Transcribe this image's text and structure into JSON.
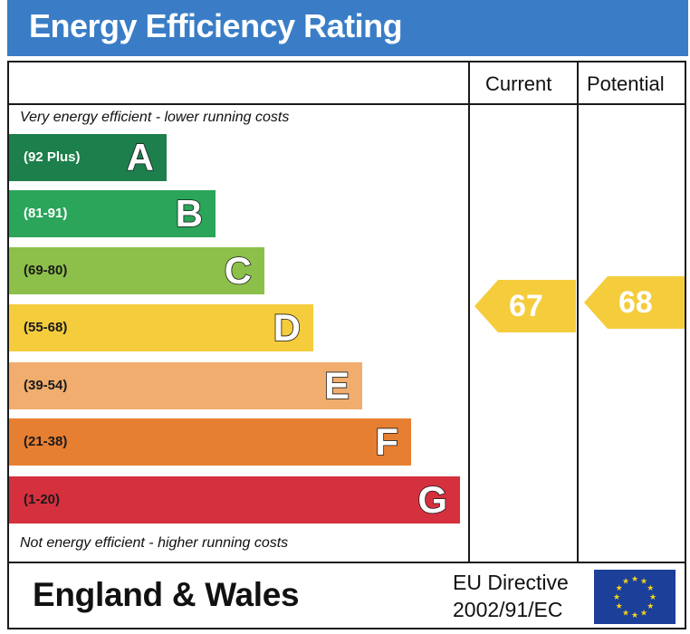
{
  "title": "Energy Efficiency Rating",
  "columns": {
    "current": "Current",
    "potential": "Potential"
  },
  "notes": {
    "top": "Very energy efficient - lower running costs",
    "bottom": "Not energy efficient - higher running costs"
  },
  "footer": {
    "region": "England & Wales",
    "directive_line1": "EU Directive",
    "directive_line2": "2002/91/EC"
  },
  "chart_data": {
    "type": "bar",
    "categories": [
      "A",
      "B",
      "C",
      "D",
      "E",
      "F",
      "G"
    ],
    "ranges": [
      "(92 Plus)",
      "(81-91)",
      "(69-80)",
      "(55-68)",
      "(39-54)",
      "(21-38)",
      "(1-20)"
    ],
    "colors": [
      "#1d7f4b",
      "#2aa55a",
      "#8cc04a",
      "#f5cc3c",
      "#f0ad6e",
      "#e77f32",
      "#d5303e"
    ],
    "current": {
      "value": 67,
      "band": "D",
      "color": "#f5cc3c"
    },
    "potential": {
      "value": 68,
      "band": "D",
      "color": "#f5cc3c"
    }
  },
  "icons": {
    "eu_flag": "eu-flag-icon"
  }
}
